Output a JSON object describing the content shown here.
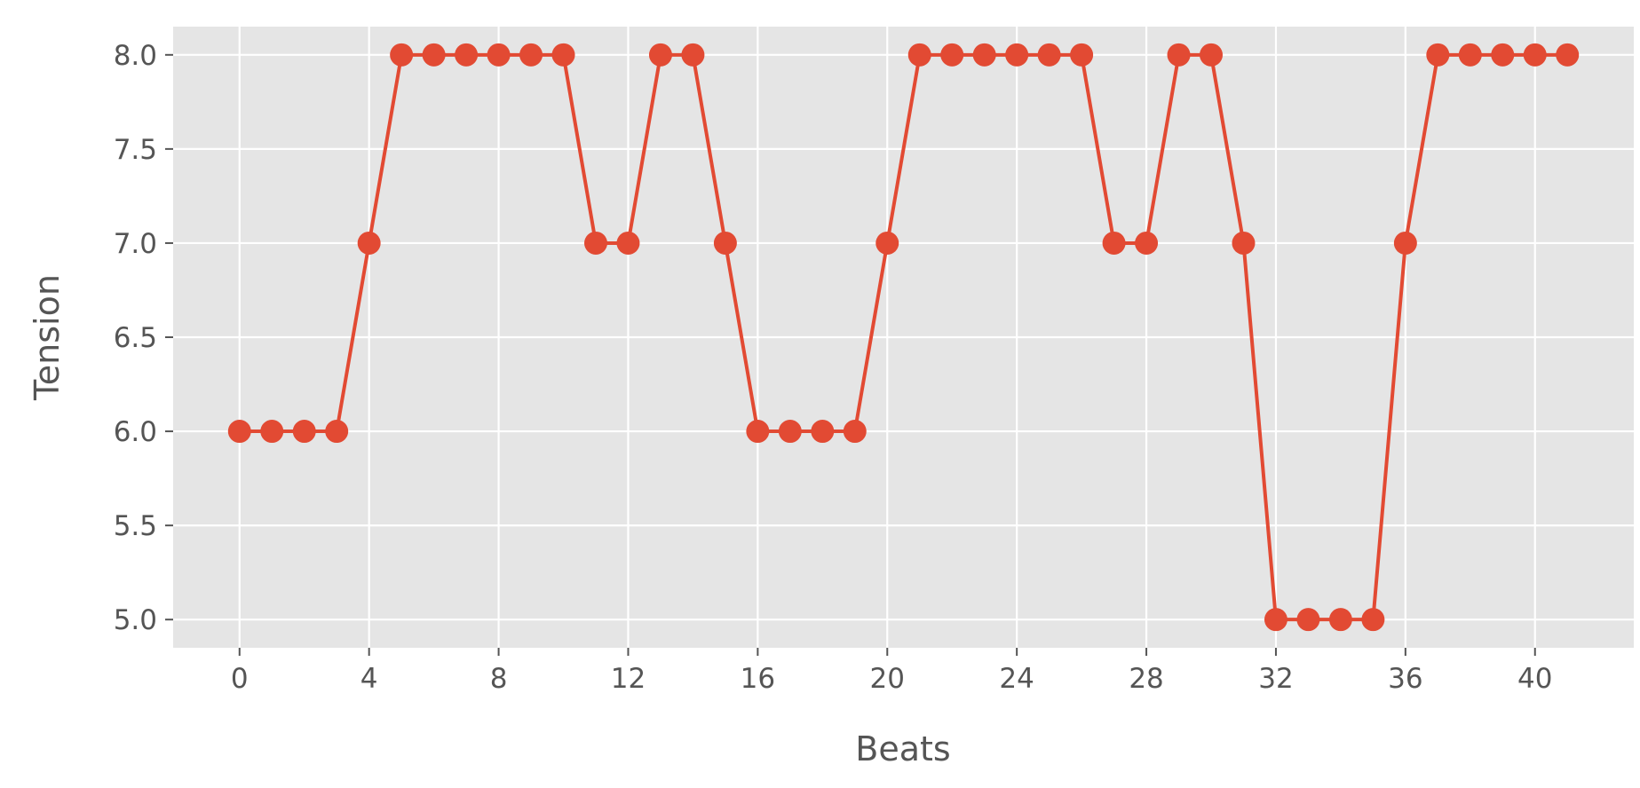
{
  "chart_data": {
    "type": "line",
    "title": "",
    "xlabel": "Beats",
    "ylabel": "Tension",
    "xlim": [
      -2.05,
      43.05
    ],
    "ylim": [
      4.85,
      8.15
    ],
    "xticks": [
      0,
      4,
      8,
      12,
      16,
      20,
      24,
      28,
      32,
      36,
      40
    ],
    "xtick_labels": [
      "0",
      "4",
      "8",
      "12",
      "16",
      "20",
      "24",
      "28",
      "32",
      "36",
      "40"
    ],
    "yticks": [
      5.0,
      5.5,
      6.0,
      6.5,
      7.0,
      7.5,
      8.0
    ],
    "ytick_labels": [
      "5.0",
      "5.5",
      "6.0",
      "6.5",
      "7.0",
      "7.5",
      "8.0"
    ],
    "grid": true,
    "colors": {
      "series": "#e24a33",
      "plot_bg": "#e5e5e5",
      "grid": "#ffffff",
      "text": "#555555"
    },
    "series": [
      {
        "marker": "circle",
        "x": [
          0,
          1,
          2,
          3,
          4,
          5,
          6,
          7,
          8,
          9,
          10,
          11,
          12,
          13,
          14,
          15,
          16,
          17,
          18,
          19,
          20,
          21,
          22,
          23,
          24,
          25,
          26,
          27,
          28,
          29,
          30,
          31,
          32,
          33,
          34,
          35,
          36,
          37,
          38,
          39,
          40,
          41
        ],
        "values": [
          6,
          6,
          6,
          6,
          7,
          8,
          8,
          8,
          8,
          8,
          8,
          7,
          7,
          8,
          8,
          7,
          6,
          6,
          6,
          6,
          7,
          8,
          8,
          8,
          8,
          8,
          8,
          7,
          7,
          8,
          8,
          7,
          5,
          5,
          5,
          5,
          7,
          8,
          8,
          8,
          8,
          8
        ]
      }
    ]
  }
}
